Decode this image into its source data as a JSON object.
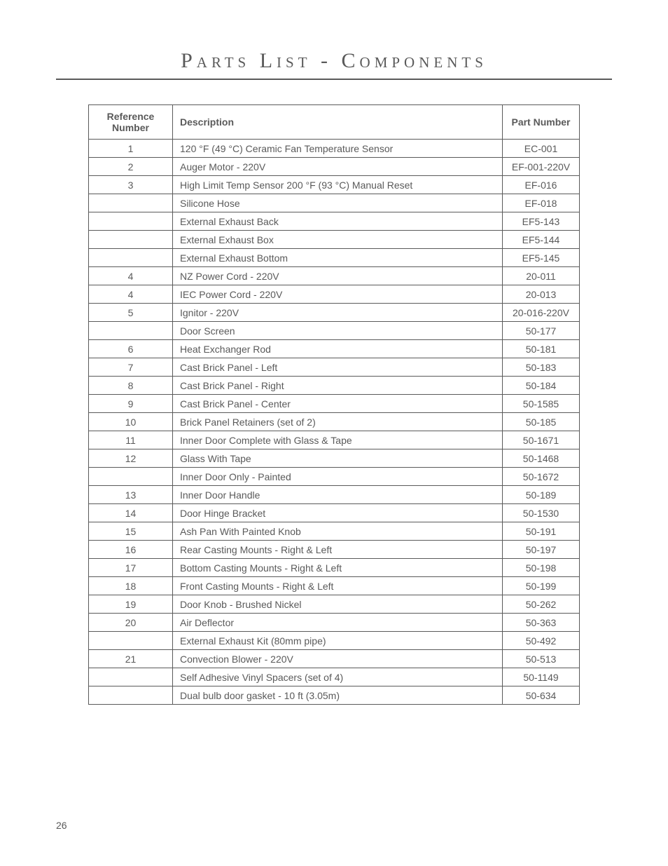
{
  "title": "Parts List - Components",
  "pageNumber": "26",
  "table": {
    "headers": {
      "reference": "Reference Number",
      "description": "Description",
      "part": "Part Number"
    },
    "rows": [
      {
        "ref": "1",
        "desc": "120 °F (49 °C) Ceramic Fan Temperature Sensor",
        "part": "EC-001"
      },
      {
        "ref": "2",
        "desc": "Auger Motor - 220V",
        "part": "EF-001-220V"
      },
      {
        "ref": "3",
        "desc": "High Limit Temp Sensor 200 °F (93 °C) Manual Reset",
        "part": "EF-016"
      },
      {
        "ref": "",
        "desc": "Silicone Hose",
        "part": "EF-018"
      },
      {
        "ref": "",
        "desc": "External Exhaust Back",
        "part": "EF5-143"
      },
      {
        "ref": "",
        "desc": "External Exhaust Box",
        "part": "EF5-144"
      },
      {
        "ref": "",
        "desc": "External Exhaust Bottom",
        "part": "EF5-145"
      },
      {
        "ref": "4",
        "desc": "NZ Power Cord - 220V",
        "part": "20-011"
      },
      {
        "ref": "4",
        "desc": "IEC Power Cord - 220V",
        "part": "20-013"
      },
      {
        "ref": "5",
        "desc": "Ignitor - 220V",
        "part": "20-016-220V"
      },
      {
        "ref": "",
        "desc": "Door Screen",
        "part": "50-177"
      },
      {
        "ref": "6",
        "desc": "Heat Exchanger Rod",
        "part": "50-181"
      },
      {
        "ref": "7",
        "desc": "Cast Brick Panel - Left",
        "part": "50-183"
      },
      {
        "ref": "8",
        "desc": "Cast Brick Panel - Right",
        "part": "50-184"
      },
      {
        "ref": "9",
        "desc": "Cast Brick Panel - Center",
        "part": "50-1585"
      },
      {
        "ref": "10",
        "desc": "Brick Panel Retainers (set of 2)",
        "part": "50-185"
      },
      {
        "ref": "11",
        "desc": "Inner Door Complete with Glass & Tape",
        "part": "50-1671"
      },
      {
        "ref": "12",
        "desc": "Glass With Tape",
        "part": "50-1468"
      },
      {
        "ref": "",
        "desc": "Inner Door Only - Painted",
        "part": "50-1672"
      },
      {
        "ref": "13",
        "desc": "Inner Door Handle",
        "part": "50-189"
      },
      {
        "ref": "14",
        "desc": "Door Hinge Bracket",
        "part": "50-1530"
      },
      {
        "ref": "15",
        "desc": "Ash Pan With Painted Knob",
        "part": "50-191"
      },
      {
        "ref": "16",
        "desc": "Rear Casting Mounts - Right & Left",
        "part": "50-197"
      },
      {
        "ref": "17",
        "desc": "Bottom Casting Mounts - Right & Left",
        "part": "50-198"
      },
      {
        "ref": "18",
        "desc": "Front Casting Mounts  - Right & Left",
        "part": "50-199"
      },
      {
        "ref": "19",
        "desc": "Door Knob - Brushed Nickel",
        "part": "50-262"
      },
      {
        "ref": "20",
        "desc": "Air Deflector",
        "part": "50-363"
      },
      {
        "ref": "",
        "desc": "External Exhaust Kit (80mm pipe)",
        "part": "50-492"
      },
      {
        "ref": "21",
        "desc": "Convection Blower - 220V",
        "part": "50-513"
      },
      {
        "ref": "",
        "desc": "Self Adhesive Vinyl Spacers (set of 4)",
        "part": "50-1149"
      },
      {
        "ref": "",
        "desc": "Dual bulb door gasket - 10 ft (3.05m)",
        "part": "50-634"
      }
    ]
  }
}
